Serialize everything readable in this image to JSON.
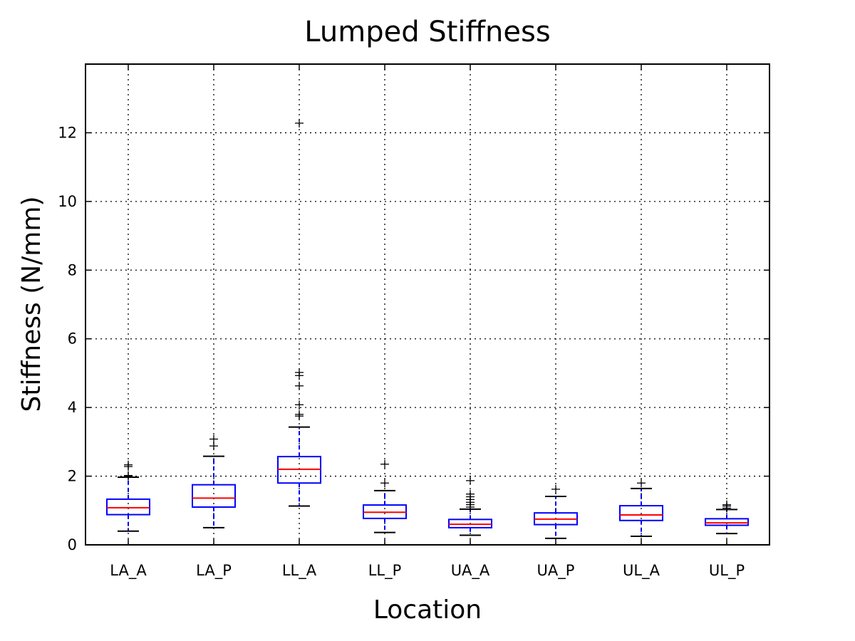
{
  "chart_data": {
    "type": "box",
    "title": "Lumped Stiffness",
    "xlabel": "Location",
    "ylabel": "Stiffness (N/mm)",
    "ylim": [
      0,
      14
    ],
    "yticks": [
      "0",
      "2",
      "4",
      "6",
      "8",
      "10",
      "12"
    ],
    "grid": true,
    "colors": {
      "box": "#0000ff",
      "median": "#ff0000",
      "whisker": "#0000ff",
      "cap": "#000000",
      "flier": "#000000",
      "grid": "#000000"
    },
    "categories": [
      "LA_A",
      "LA_P",
      "LL_A",
      "LL_P",
      "UA_A",
      "UA_P",
      "UL_A",
      "UL_P"
    ],
    "boxes": [
      {
        "label": "LA_A",
        "whisker_low": 0.4,
        "q1": 0.88,
        "median": 1.08,
        "q3": 1.33,
        "whisker_high": 1.97,
        "outliers": [
          2.0,
          2.02,
          2.28,
          2.33
        ]
      },
      {
        "label": "LA_P",
        "whisker_low": 0.5,
        "q1": 1.1,
        "median": 1.36,
        "q3": 1.75,
        "whisker_high": 2.58,
        "outliers": [
          2.88,
          3.08
        ]
      },
      {
        "label": "LL_A",
        "whisker_low": 1.13,
        "q1": 1.8,
        "median": 2.2,
        "q3": 2.57,
        "whisker_high": 3.43,
        "outliers": [
          3.75,
          3.8,
          4.08,
          4.63,
          4.93,
          5.02,
          12.28
        ]
      },
      {
        "label": "LL_P",
        "whisker_low": 0.36,
        "q1": 0.77,
        "median": 0.95,
        "q3": 1.16,
        "whisker_high": 1.58,
        "outliers": [
          1.8,
          2.35
        ]
      },
      {
        "label": "UA_A",
        "whisker_low": 0.28,
        "q1": 0.5,
        "median": 0.6,
        "q3": 0.74,
        "whisker_high": 1.04,
        "outliers": [
          1.1,
          1.17,
          1.24,
          1.32,
          1.4,
          1.48,
          1.87
        ]
      },
      {
        "label": "UA_P",
        "whisker_low": 0.19,
        "q1": 0.59,
        "median": 0.75,
        "q3": 0.93,
        "whisker_high": 1.41,
        "outliers": [
          1.62
        ]
      },
      {
        "label": "UL_A",
        "whisker_low": 0.25,
        "q1": 0.71,
        "median": 0.87,
        "q3": 1.14,
        "whisker_high": 1.64,
        "outliers": [
          1.8
        ]
      },
      {
        "label": "UL_P",
        "whisker_low": 0.33,
        "q1": 0.57,
        "median": 0.64,
        "q3": 0.76,
        "whisker_high": 1.03,
        "outliers": [
          1.07,
          1.13,
          1.17
        ]
      }
    ]
  }
}
